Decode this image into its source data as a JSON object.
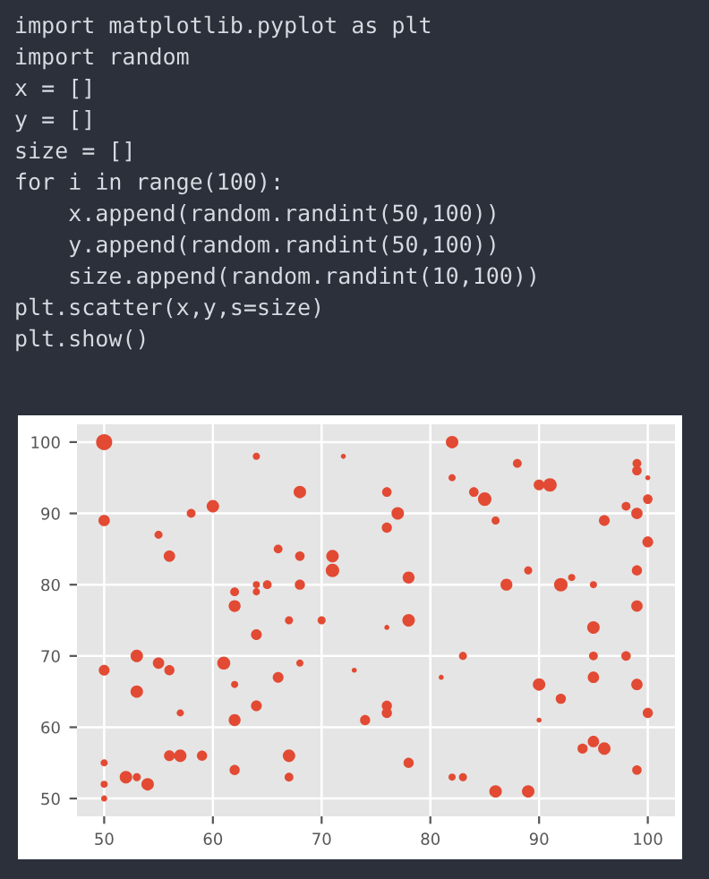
{
  "chart_data": {
    "type": "bubble",
    "annotations": [
      "import matplotlib.pyplot as plt",
      "import random",
      "x = []",
      "y = []",
      "size = []",
      "for i in range(100):",
      "    x.append(random.randint(50,100))",
      "    y.append(random.randint(50,100))",
      "    size.append(random.randint(10,100))",
      "plt.scatter(x,y,s=size)",
      "plt.show()"
    ],
    "x": [
      50,
      50,
      55,
      56,
      58,
      60,
      64,
      68,
      72,
      66,
      68,
      71,
      71,
      62,
      62,
      64,
      64,
      65,
      68,
      67,
      70,
      64,
      82,
      82,
      88,
      76,
      77,
      76,
      84,
      85,
      86,
      90,
      91,
      99,
      99,
      100,
      98,
      99,
      100,
      96,
      100,
      78,
      87,
      89,
      92,
      93,
      95,
      99,
      99,
      76,
      78,
      95,
      50,
      53,
      55,
      56,
      53,
      61,
      62,
      66,
      68,
      73,
      57,
      62,
      64,
      74,
      50,
      50,
      50,
      52,
      53,
      54,
      56,
      57,
      59,
      62,
      67,
      67,
      83,
      95,
      98,
      81,
      90,
      95,
      99,
      92,
      76,
      76,
      90,
      100,
      95,
      94,
      96,
      78,
      82,
      83,
      86,
      89,
      99
    ],
    "values": [
      100,
      89,
      87,
      84,
      90,
      91,
      98,
      93,
      98,
      85,
      84,
      84,
      82,
      79,
      77,
      80,
      79,
      80,
      80,
      75,
      75,
      73,
      100,
      95,
      97,
      93,
      90,
      88,
      93,
      92,
      89,
      94,
      94,
      97,
      96,
      95,
      91,
      90,
      92,
      89,
      86,
      81,
      80,
      82,
      80,
      81,
      80,
      82,
      77,
      74,
      75,
      74,
      68,
      70,
      69,
      68,
      65,
      69,
      66,
      67,
      69,
      68,
      62,
      61,
      63,
      61,
      55,
      52,
      50,
      53,
      53,
      52,
      56,
      56,
      56,
      54,
      56,
      53,
      70,
      70,
      70,
      67,
      66,
      67,
      66,
      64,
      63,
      62,
      61,
      62,
      58,
      57,
      57,
      55,
      53,
      53,
      51,
      51,
      54
    ],
    "sizes": [
      1,
      0.5,
      0.25,
      0.5,
      0.3,
      0.6,
      0.2,
      0.6,
      0.1,
      0.3,
      0.35,
      0.6,
      0.7,
      0.3,
      0.55,
      0.2,
      0.2,
      0.3,
      0.4,
      0.25,
      0.25,
      0.45,
      0.6,
      0.2,
      0.3,
      0.35,
      0.6,
      0.4,
      0.35,
      0.7,
      0.25,
      0.45,
      0.7,
      0.3,
      0.35,
      0.1,
      0.3,
      0.5,
      0.35,
      0.45,
      0.45,
      0.55,
      0.55,
      0.25,
      0.7,
      0.2,
      0.2,
      0.4,
      0.5,
      0.1,
      0.6,
      0.6,
      0.45,
      0.6,
      0.5,
      0.4,
      0.6,
      0.65,
      0.2,
      0.45,
      0.2,
      0.1,
      0.2,
      0.55,
      0.45,
      0.4,
      0.2,
      0.2,
      0.15,
      0.6,
      0.25,
      0.6,
      0.45,
      0.6,
      0.4,
      0.4,
      0.6,
      0.3,
      0.25,
      0.3,
      0.35,
      0.1,
      0.6,
      0.5,
      0.5,
      0.4,
      0.4,
      0.4,
      0.1,
      0.4,
      0.5,
      0.4,
      0.6,
      0.4,
      0.2,
      0.25,
      0.6,
      0.6,
      0.35
    ],
    "color": "#e24a33",
    "xlim": [
      47.5,
      102.5
    ],
    "ylim": [
      47.5,
      102.5
    ],
    "xticks": [
      50,
      60,
      70,
      80,
      90,
      100
    ],
    "yticks": [
      50,
      60,
      70,
      80,
      90,
      100
    ],
    "grid": true
  }
}
